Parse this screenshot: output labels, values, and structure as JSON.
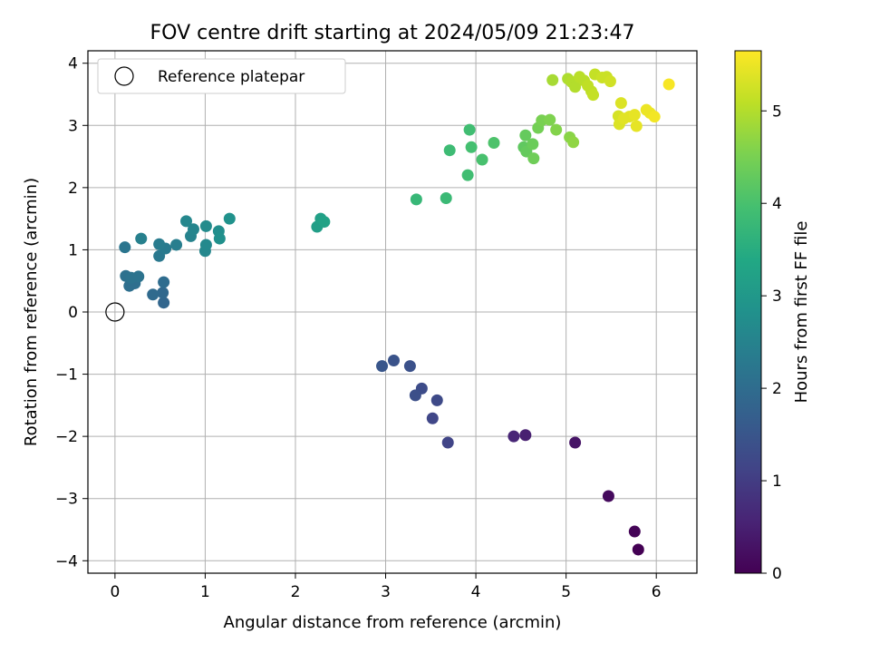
{
  "chart_data": {
    "type": "scatter",
    "title": "FOV centre drift starting at 2024/05/09 21:23:47",
    "xlabel": "Angular distance from reference (arcmin)",
    "ylabel": "Rotation from reference (arcmin)",
    "xlim": [
      -0.3,
      6.45
    ],
    "ylim": [
      -4.2,
      4.2
    ],
    "xticks": [
      0,
      1,
      2,
      3,
      4,
      5,
      6
    ],
    "yticks": [
      -4,
      -3,
      -2,
      -1,
      0,
      1,
      2,
      3,
      4
    ],
    "grid": true,
    "legend": {
      "position": "top-left",
      "entries": [
        "Reference platepar"
      ]
    },
    "colorbar": {
      "label": "Hours from first FF file",
      "range": [
        0,
        5.65
      ],
      "ticks": [
        0,
        1,
        2,
        3,
        4,
        5
      ],
      "colormap": "viridis"
    },
    "reference_point": {
      "x": 0,
      "y": 0
    },
    "points": [
      [
        5.8,
        -3.82,
        0.0
      ],
      [
        5.76,
        -3.53,
        0.05
      ],
      [
        5.47,
        -2.96,
        0.15
      ],
      [
        5.1,
        -2.1,
        0.3
      ],
      [
        4.55,
        -1.98,
        0.5
      ],
      [
        4.42,
        -2.0,
        0.6
      ],
      [
        3.69,
        -2.1,
        1.15
      ],
      [
        3.52,
        -1.71,
        1.2
      ],
      [
        3.57,
        -1.42,
        1.25
      ],
      [
        3.4,
        -1.23,
        1.3
      ],
      [
        3.33,
        -1.34,
        1.35
      ],
      [
        3.27,
        -0.87,
        1.4
      ],
      [
        3.09,
        -0.78,
        1.45
      ],
      [
        2.96,
        -0.87,
        1.5
      ],
      [
        0.54,
        0.15,
        1.85
      ],
      [
        0.53,
        0.31,
        1.9
      ],
      [
        0.42,
        0.28,
        1.95
      ],
      [
        0.54,
        0.48,
        2.0
      ],
      [
        0.16,
        0.42,
        2.05
      ],
      [
        0.22,
        0.46,
        2.05
      ],
      [
        0.12,
        0.58,
        2.1
      ],
      [
        0.26,
        0.57,
        2.15
      ],
      [
        0.18,
        0.55,
        2.15
      ],
      [
        0.11,
        1.04,
        2.2
      ],
      [
        0.49,
        0.9,
        2.25
      ],
      [
        0.56,
        1.02,
        2.3
      ],
      [
        0.49,
        1.09,
        2.35
      ],
      [
        0.68,
        1.08,
        2.4
      ],
      [
        0.29,
        1.18,
        2.45
      ],
      [
        0.84,
        1.22,
        2.5
      ],
      [
        0.87,
        1.33,
        2.55
      ],
      [
        0.79,
        1.46,
        2.6
      ],
      [
        1.0,
        0.98,
        2.6
      ],
      [
        1.01,
        1.08,
        2.65
      ],
      [
        1.01,
        1.38,
        2.7
      ],
      [
        1.15,
        1.3,
        2.75
      ],
      [
        1.16,
        1.18,
        2.8
      ],
      [
        1.27,
        1.5,
        2.85
      ],
      [
        2.24,
        1.37,
        3.15
      ],
      [
        2.28,
        1.5,
        3.2
      ],
      [
        2.32,
        1.45,
        3.25
      ],
      [
        3.34,
        1.81,
        3.75
      ],
      [
        3.67,
        1.83,
        3.8
      ],
      [
        3.71,
        2.6,
        3.85
      ],
      [
        3.91,
        2.2,
        3.9
      ],
      [
        3.93,
        2.93,
        3.9
      ],
      [
        3.95,
        2.65,
        3.95
      ],
      [
        4.07,
        2.45,
        4.0
      ],
      [
        4.2,
        2.72,
        4.05
      ],
      [
        4.53,
        2.65,
        4.25
      ],
      [
        4.55,
        2.84,
        4.3
      ],
      [
        4.56,
        2.58,
        4.3
      ],
      [
        4.63,
        2.7,
        4.35
      ],
      [
        4.64,
        2.47,
        4.4
      ],
      [
        4.69,
        2.96,
        4.45
      ],
      [
        4.73,
        3.08,
        4.5
      ],
      [
        4.82,
        3.09,
        4.55
      ],
      [
        4.89,
        2.93,
        4.6
      ],
      [
        5.04,
        2.81,
        4.65
      ],
      [
        5.08,
        2.73,
        4.7
      ],
      [
        4.85,
        3.73,
        4.9
      ],
      [
        5.02,
        3.75,
        4.95
      ],
      [
        5.06,
        3.7,
        5.0
      ],
      [
        5.1,
        3.62,
        5.0
      ],
      [
        5.15,
        3.78,
        5.05
      ],
      [
        5.2,
        3.72,
        5.05
      ],
      [
        5.24,
        3.64,
        5.1
      ],
      [
        5.28,
        3.55,
        5.1
      ],
      [
        5.3,
        3.49,
        5.15
      ],
      [
        5.32,
        3.82,
        5.15
      ],
      [
        5.4,
        3.77,
        5.2
      ],
      [
        5.45,
        3.78,
        5.2
      ],
      [
        5.49,
        3.71,
        5.25
      ],
      [
        5.58,
        3.15,
        5.3
      ],
      [
        5.59,
        3.02,
        5.35
      ],
      [
        5.61,
        3.36,
        5.35
      ],
      [
        5.64,
        3.11,
        5.4
      ],
      [
        5.7,
        3.14,
        5.4
      ],
      [
        5.76,
        3.17,
        5.45
      ],
      [
        5.78,
        2.99,
        5.45
      ],
      [
        5.89,
        3.25,
        5.5
      ],
      [
        5.93,
        3.2,
        5.5
      ],
      [
        5.98,
        3.14,
        5.55
      ],
      [
        6.14,
        3.66,
        5.6
      ]
    ]
  }
}
